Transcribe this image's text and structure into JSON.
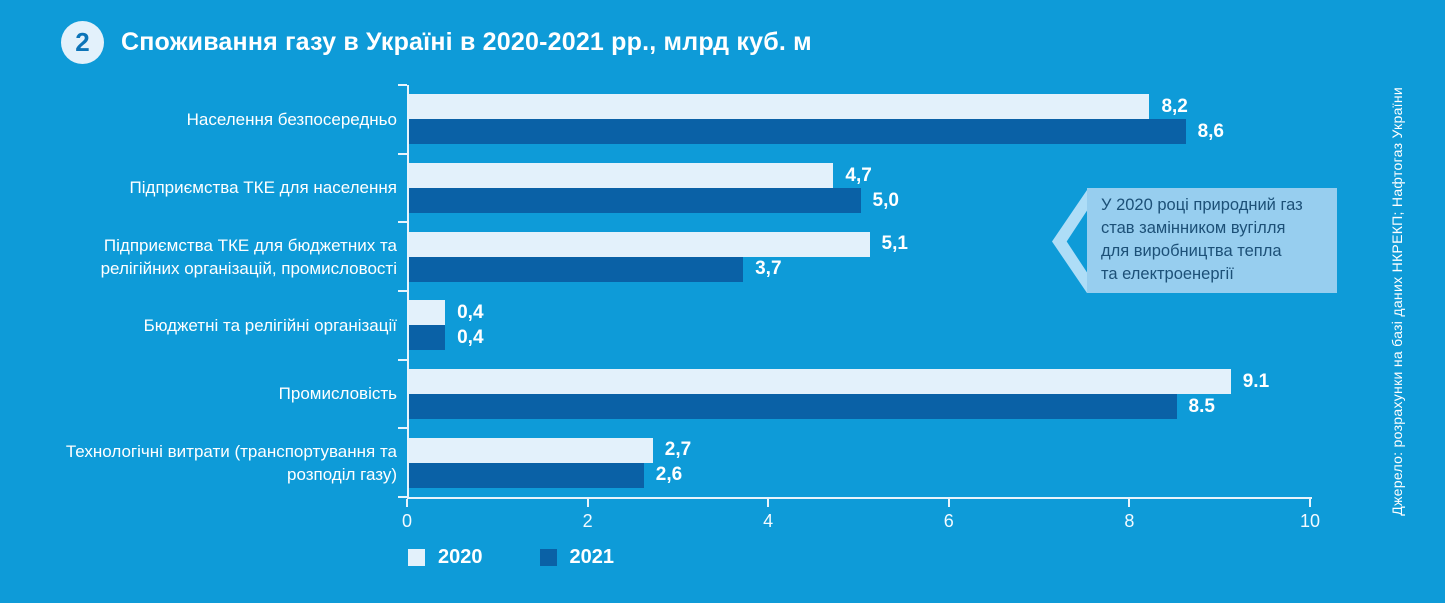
{
  "figure": {
    "badge": "2",
    "title": "Споживання газу в Україні в 2020-2021 рр., млрд куб. м"
  },
  "chart_data": {
    "type": "bar",
    "orientation": "horizontal",
    "title": "Споживання газу в Україні в 2020-2021 рр., млрд куб. м",
    "categories": [
      "Населення безпосередньо",
      "Підприємства ТКЕ для населення",
      "Підприємства ТКЕ для бюджетних та релігійних організацій, промисловості",
      "Бюджетні та релігійні організації",
      "Промисловість",
      "Технологічні витрати (транспортування та розподіл газу)"
    ],
    "series": [
      {
        "name": "2020",
        "color": "#E3F1FB",
        "values": [
          8.2,
          4.7,
          5.1,
          0.4,
          9.1,
          2.7
        ],
        "value_labels": [
          "8,2",
          "4,7",
          "5,1",
          "0,4",
          "9.1",
          "2,7"
        ]
      },
      {
        "name": "2021",
        "color": "#0A61A6",
        "values": [
          8.6,
          5.0,
          3.7,
          0.4,
          8.5,
          2.6
        ],
        "value_labels": [
          "8,6",
          "5,0",
          "3,7",
          "0,4",
          "8.5",
          "2,6"
        ]
      }
    ],
    "xlim": [
      0,
      10
    ],
    "xticks": [
      "0",
      "2",
      "4",
      "6",
      "8",
      "10"
    ],
    "grid": false,
    "legend_position": "bottom-left",
    "units": "млрд куб. м"
  },
  "legend": {
    "items": [
      {
        "label": "2020",
        "color": "#E3F1FB"
      },
      {
        "label": "2021",
        "color": "#0A61A6"
      }
    ]
  },
  "callout": {
    "lines": [
      "У 2020 році природний газ",
      "став замінником вугілля",
      "для виробництва тепла",
      "та електроенергії"
    ]
  },
  "source": "Джерело: розрахунки на базі даних НКРЕКП; Нафтогаз України",
  "colors": {
    "background": "#0E9BD8",
    "bar_2020": "#E3F1FB",
    "bar_2021": "#0A61A6",
    "axis": "#E8F4FC",
    "text": "#FFFFFF",
    "badge_bg": "#E3F1FB",
    "badge_text": "#0C74B8",
    "callout_bg": "#97CEEF",
    "callout_arrow": "#AEDDF7",
    "callout_text": "#1C5077"
  }
}
